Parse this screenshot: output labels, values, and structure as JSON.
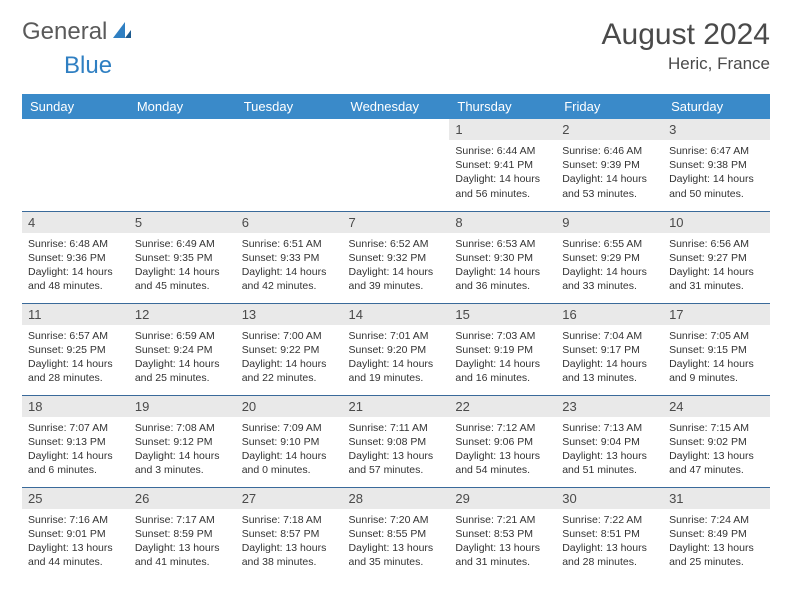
{
  "logo": {
    "text1": "General",
    "text2": "Blue"
  },
  "title": "August 2024",
  "location": "Heric, France",
  "colors": {
    "header_bg": "#3a8ac9",
    "header_text": "#ffffff",
    "daynum_bg": "#e9e9e9",
    "daynum_text": "#4a4a4a",
    "body_text": "#333333",
    "rule": "#3a6a9a",
    "logo_gray": "#5a5a5a",
    "logo_blue": "#2f7fc2"
  },
  "weekdays": [
    "Sunday",
    "Monday",
    "Tuesday",
    "Wednesday",
    "Thursday",
    "Friday",
    "Saturday"
  ],
  "leading_blanks": 4,
  "days": [
    {
      "n": 1,
      "sunrise": "6:44 AM",
      "sunset": "9:41 PM",
      "dl_h": 14,
      "dl_m": 56
    },
    {
      "n": 2,
      "sunrise": "6:46 AM",
      "sunset": "9:39 PM",
      "dl_h": 14,
      "dl_m": 53
    },
    {
      "n": 3,
      "sunrise": "6:47 AM",
      "sunset": "9:38 PM",
      "dl_h": 14,
      "dl_m": 50
    },
    {
      "n": 4,
      "sunrise": "6:48 AM",
      "sunset": "9:36 PM",
      "dl_h": 14,
      "dl_m": 48
    },
    {
      "n": 5,
      "sunrise": "6:49 AM",
      "sunset": "9:35 PM",
      "dl_h": 14,
      "dl_m": 45
    },
    {
      "n": 6,
      "sunrise": "6:51 AM",
      "sunset": "9:33 PM",
      "dl_h": 14,
      "dl_m": 42
    },
    {
      "n": 7,
      "sunrise": "6:52 AM",
      "sunset": "9:32 PM",
      "dl_h": 14,
      "dl_m": 39
    },
    {
      "n": 8,
      "sunrise": "6:53 AM",
      "sunset": "9:30 PM",
      "dl_h": 14,
      "dl_m": 36
    },
    {
      "n": 9,
      "sunrise": "6:55 AM",
      "sunset": "9:29 PM",
      "dl_h": 14,
      "dl_m": 33
    },
    {
      "n": 10,
      "sunrise": "6:56 AM",
      "sunset": "9:27 PM",
      "dl_h": 14,
      "dl_m": 31
    },
    {
      "n": 11,
      "sunrise": "6:57 AM",
      "sunset": "9:25 PM",
      "dl_h": 14,
      "dl_m": 28
    },
    {
      "n": 12,
      "sunrise": "6:59 AM",
      "sunset": "9:24 PM",
      "dl_h": 14,
      "dl_m": 25
    },
    {
      "n": 13,
      "sunrise": "7:00 AM",
      "sunset": "9:22 PM",
      "dl_h": 14,
      "dl_m": 22
    },
    {
      "n": 14,
      "sunrise": "7:01 AM",
      "sunset": "9:20 PM",
      "dl_h": 14,
      "dl_m": 19
    },
    {
      "n": 15,
      "sunrise": "7:03 AM",
      "sunset": "9:19 PM",
      "dl_h": 14,
      "dl_m": 16
    },
    {
      "n": 16,
      "sunrise": "7:04 AM",
      "sunset": "9:17 PM",
      "dl_h": 14,
      "dl_m": 13
    },
    {
      "n": 17,
      "sunrise": "7:05 AM",
      "sunset": "9:15 PM",
      "dl_h": 14,
      "dl_m": 9
    },
    {
      "n": 18,
      "sunrise": "7:07 AM",
      "sunset": "9:13 PM",
      "dl_h": 14,
      "dl_m": 6
    },
    {
      "n": 19,
      "sunrise": "7:08 AM",
      "sunset": "9:12 PM",
      "dl_h": 14,
      "dl_m": 3
    },
    {
      "n": 20,
      "sunrise": "7:09 AM",
      "sunset": "9:10 PM",
      "dl_h": 14,
      "dl_m": 0
    },
    {
      "n": 21,
      "sunrise": "7:11 AM",
      "sunset": "9:08 PM",
      "dl_h": 13,
      "dl_m": 57
    },
    {
      "n": 22,
      "sunrise": "7:12 AM",
      "sunset": "9:06 PM",
      "dl_h": 13,
      "dl_m": 54
    },
    {
      "n": 23,
      "sunrise": "7:13 AM",
      "sunset": "9:04 PM",
      "dl_h": 13,
      "dl_m": 51
    },
    {
      "n": 24,
      "sunrise": "7:15 AM",
      "sunset": "9:02 PM",
      "dl_h": 13,
      "dl_m": 47
    },
    {
      "n": 25,
      "sunrise": "7:16 AM",
      "sunset": "9:01 PM",
      "dl_h": 13,
      "dl_m": 44
    },
    {
      "n": 26,
      "sunrise": "7:17 AM",
      "sunset": "8:59 PM",
      "dl_h": 13,
      "dl_m": 41
    },
    {
      "n": 27,
      "sunrise": "7:18 AM",
      "sunset": "8:57 PM",
      "dl_h": 13,
      "dl_m": 38
    },
    {
      "n": 28,
      "sunrise": "7:20 AM",
      "sunset": "8:55 PM",
      "dl_h": 13,
      "dl_m": 35
    },
    {
      "n": 29,
      "sunrise": "7:21 AM",
      "sunset": "8:53 PM",
      "dl_h": 13,
      "dl_m": 31
    },
    {
      "n": 30,
      "sunrise": "7:22 AM",
      "sunset": "8:51 PM",
      "dl_h": 13,
      "dl_m": 28
    },
    {
      "n": 31,
      "sunrise": "7:24 AM",
      "sunset": "8:49 PM",
      "dl_h": 13,
      "dl_m": 25
    }
  ],
  "labels": {
    "sunrise": "Sunrise:",
    "sunset": "Sunset:",
    "daylight": "Daylight:",
    "hours": "hours",
    "and": "and",
    "minutes": "minutes."
  }
}
